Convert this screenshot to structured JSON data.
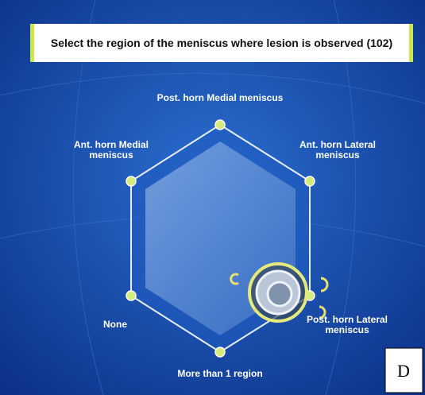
{
  "header": {
    "title": "Select the region of the meniscus where lesion is observed (102)"
  },
  "options": [
    {
      "lines": [
        "Post. horn Medial meniscus"
      ]
    },
    {
      "lines": [
        "Ant. horn Medial",
        "meniscus"
      ]
    },
    {
      "lines": [
        "Ant. horn Lateral",
        "meniscus"
      ]
    },
    {
      "lines": [
        "None"
      ]
    },
    {
      "lines": [
        "More than 1 region"
      ]
    },
    {
      "lines": [
        "Post. horn Lateral",
        "meniscus"
      ]
    }
  ],
  "panel_label": "D"
}
